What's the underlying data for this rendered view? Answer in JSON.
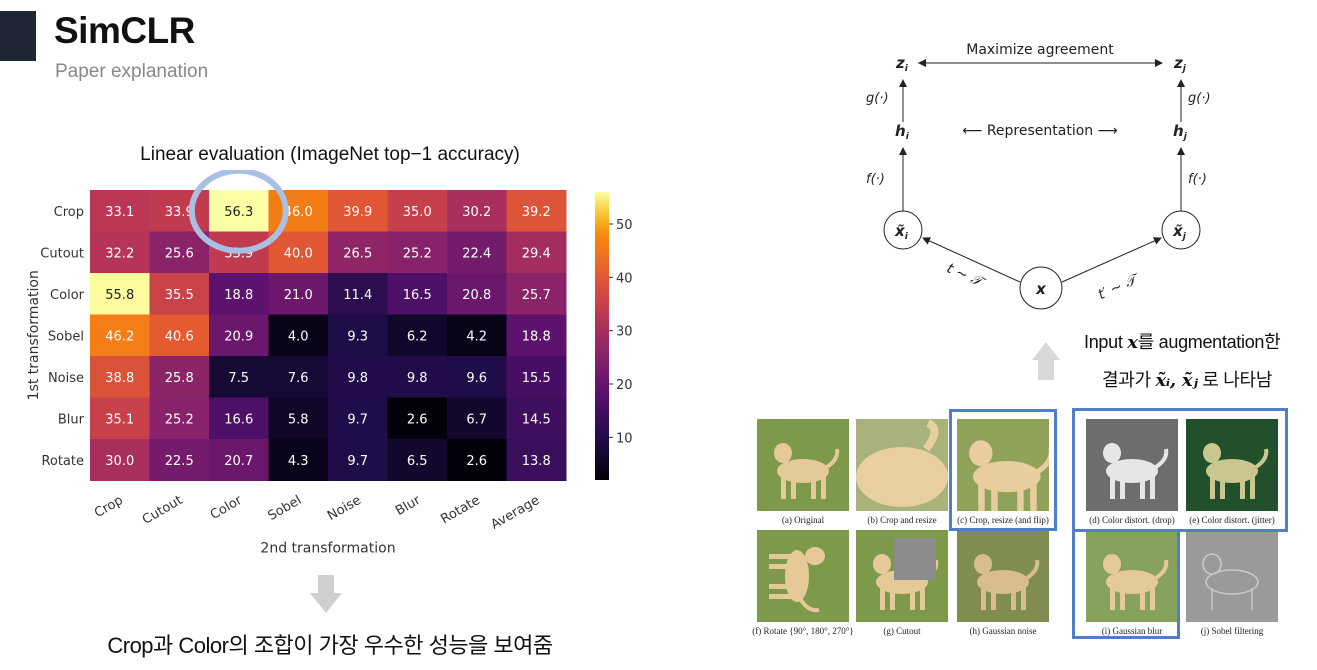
{
  "header": {
    "title": "SimCLR",
    "subtitle": "Paper explanation"
  },
  "heatmap": {
    "title": "Linear evaluation (ImageNet top−1 accuracy)",
    "note": "Crop과 Color의 조합이 가장 우수한 성능을 보여줌"
  },
  "chart_data": {
    "type": "heatmap",
    "title": "Linear evaluation (ImageNet top−1 accuracy)",
    "rows": [
      "Crop",
      "Cutout",
      "Color",
      "Sobel",
      "Noise",
      "Blur",
      "Rotate"
    ],
    "cols": [
      "Crop",
      "Cutout",
      "Color",
      "Sobel",
      "Noise",
      "Blur",
      "Rotate",
      "Average"
    ],
    "values": [
      [
        33.1,
        33.9,
        56.3,
        46.0,
        39.9,
        35.0,
        30.2,
        39.2
      ],
      [
        32.2,
        25.6,
        33.9,
        40.0,
        26.5,
        25.2,
        22.4,
        29.4
      ],
      [
        55.8,
        35.5,
        18.8,
        21.0,
        11.4,
        16.5,
        20.8,
        25.7
      ],
      [
        46.2,
        40.6,
        20.9,
        4.0,
        9.3,
        6.2,
        4.2,
        18.8
      ],
      [
        38.8,
        25.8,
        7.5,
        7.6,
        9.8,
        9.8,
        9.6,
        15.5
      ],
      [
        35.1,
        25.2,
        16.6,
        5.8,
        9.7,
        2.6,
        6.7,
        14.5
      ],
      [
        30.0,
        22.5,
        20.7,
        4.3,
        9.7,
        6.5,
        2.6,
        13.8
      ]
    ],
    "xlabel": "2nd transformation",
    "ylabel": "1st transformation",
    "colorbar_ticks": [
      10,
      20,
      30,
      40,
      50
    ],
    "colorbar_range": [
      2,
      56
    ],
    "highlight": {
      "row": "Crop",
      "col": "Color"
    }
  },
  "diagram": {
    "zi": "z",
    "zj": "z",
    "zi_sub": "i",
    "zj_sub": "j",
    "maximize": "Maximize agreement",
    "g": "g(·)",
    "hi": "h",
    "hj": "h",
    "hi_sub": "i",
    "hj_sub": "j",
    "representation": "⟵ Representation ⟶",
    "f": "f(·)",
    "xi": "x̃",
    "xj": "x̃",
    "xi_sub": "i",
    "xj_sub": "j",
    "x": "x",
    "t_left": "t ∼ 𝒯",
    "t_right": "t′ ∼ 𝒯"
  },
  "augment_note": {
    "line1_a": "Input ",
    "line1_var": "x",
    "line1_b": "를 augmentation한",
    "line2_a": "결과가 ",
    "line2_vars": "x̃ᵢ, x̃ⱼ",
    "line2_b": " 로 나타남"
  },
  "augmentations": [
    {
      "caption": "(a) Original"
    },
    {
      "caption": "(b) Crop and resize"
    },
    {
      "caption": "(c) Crop, resize (and flip)"
    },
    {
      "caption": "(d) Color distort. (drop)"
    },
    {
      "caption": "(e) Color distort. (jitter)"
    },
    {
      "caption": "(f) Rotate {90°, 180°, 270°}"
    },
    {
      "caption": "(g) Cutout"
    },
    {
      "caption": "(h) Gaussian noise"
    },
    {
      "caption": "(i) Gaussian blur"
    },
    {
      "caption": "(j) Sobel filtering"
    }
  ],
  "colors": {
    "header_block": "#1f2633",
    "highlight_frame": "#4f7fc9",
    "circle": "#a9bfe3",
    "arrow_gray": "#cfcfcf"
  },
  "icons": [
    "down-arrow-icon",
    "up-arrow-icon"
  ]
}
